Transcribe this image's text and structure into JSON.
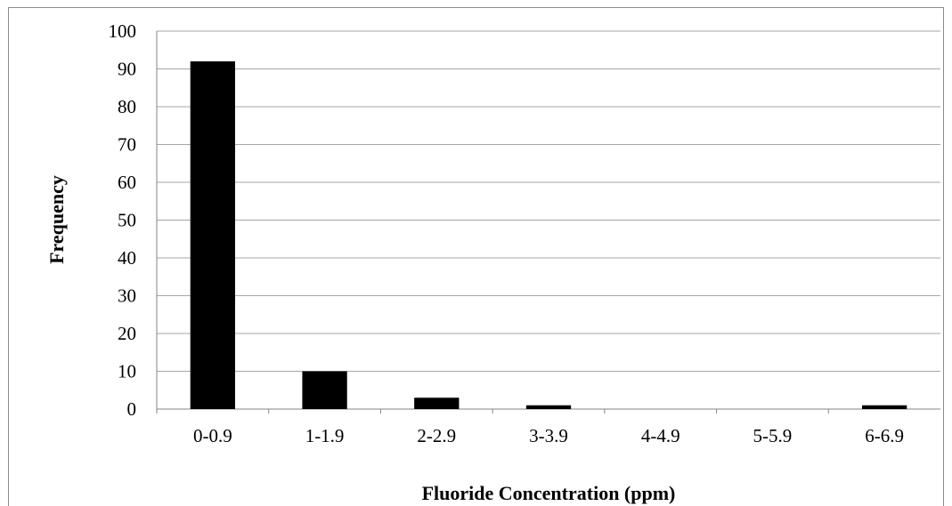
{
  "chart_data": {
    "type": "bar",
    "title": "",
    "xlabel": "Fluoride Concentration (ppm)",
    "ylabel": "Frequency",
    "categories": [
      "0-0.9",
      "1-1.9",
      "2-2.9",
      "3-3.9",
      "4-4.9",
      "5-5.9",
      "6-6.9"
    ],
    "values": [
      92,
      10,
      3,
      1,
      0,
      0,
      1
    ],
    "ylim": [
      0,
      100
    ],
    "yticks": [
      "0",
      "10",
      "20",
      "30",
      "40",
      "50",
      "60",
      "70",
      "80",
      "90",
      "100"
    ],
    "grid": true,
    "legend": "none",
    "colors": {
      "bar": "#000000",
      "grid": "#a6a6a6",
      "axis": "#868686"
    }
  }
}
